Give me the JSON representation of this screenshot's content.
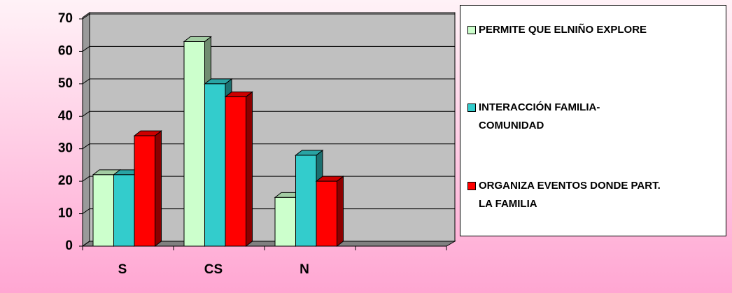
{
  "chart_data": {
    "type": "bar",
    "categories": [
      "S",
      "CS",
      "N",
      null
    ],
    "series": [
      {
        "name": "PERMITE QUE ELNIÑO EXPLORE",
        "color": "#ccffcc",
        "values": [
          22,
          63,
          15,
          null
        ]
      },
      {
        "name": "INTERACCIÓN FAMILIA-\nCOMUNIDAD",
        "color": "#33cccc",
        "values": [
          22,
          50,
          28,
          null
        ]
      },
      {
        "name": "ORGANIZA EVENTOS DONDE PART.\nLA  FAMILIA",
        "color": "#ff0000",
        "values": [
          34,
          46,
          20,
          null
        ]
      }
    ],
    "ylim": [
      0,
      70
    ],
    "yticks": [
      0,
      10,
      20,
      30,
      40,
      50,
      60,
      70
    ],
    "grid": true,
    "legend": "right"
  }
}
